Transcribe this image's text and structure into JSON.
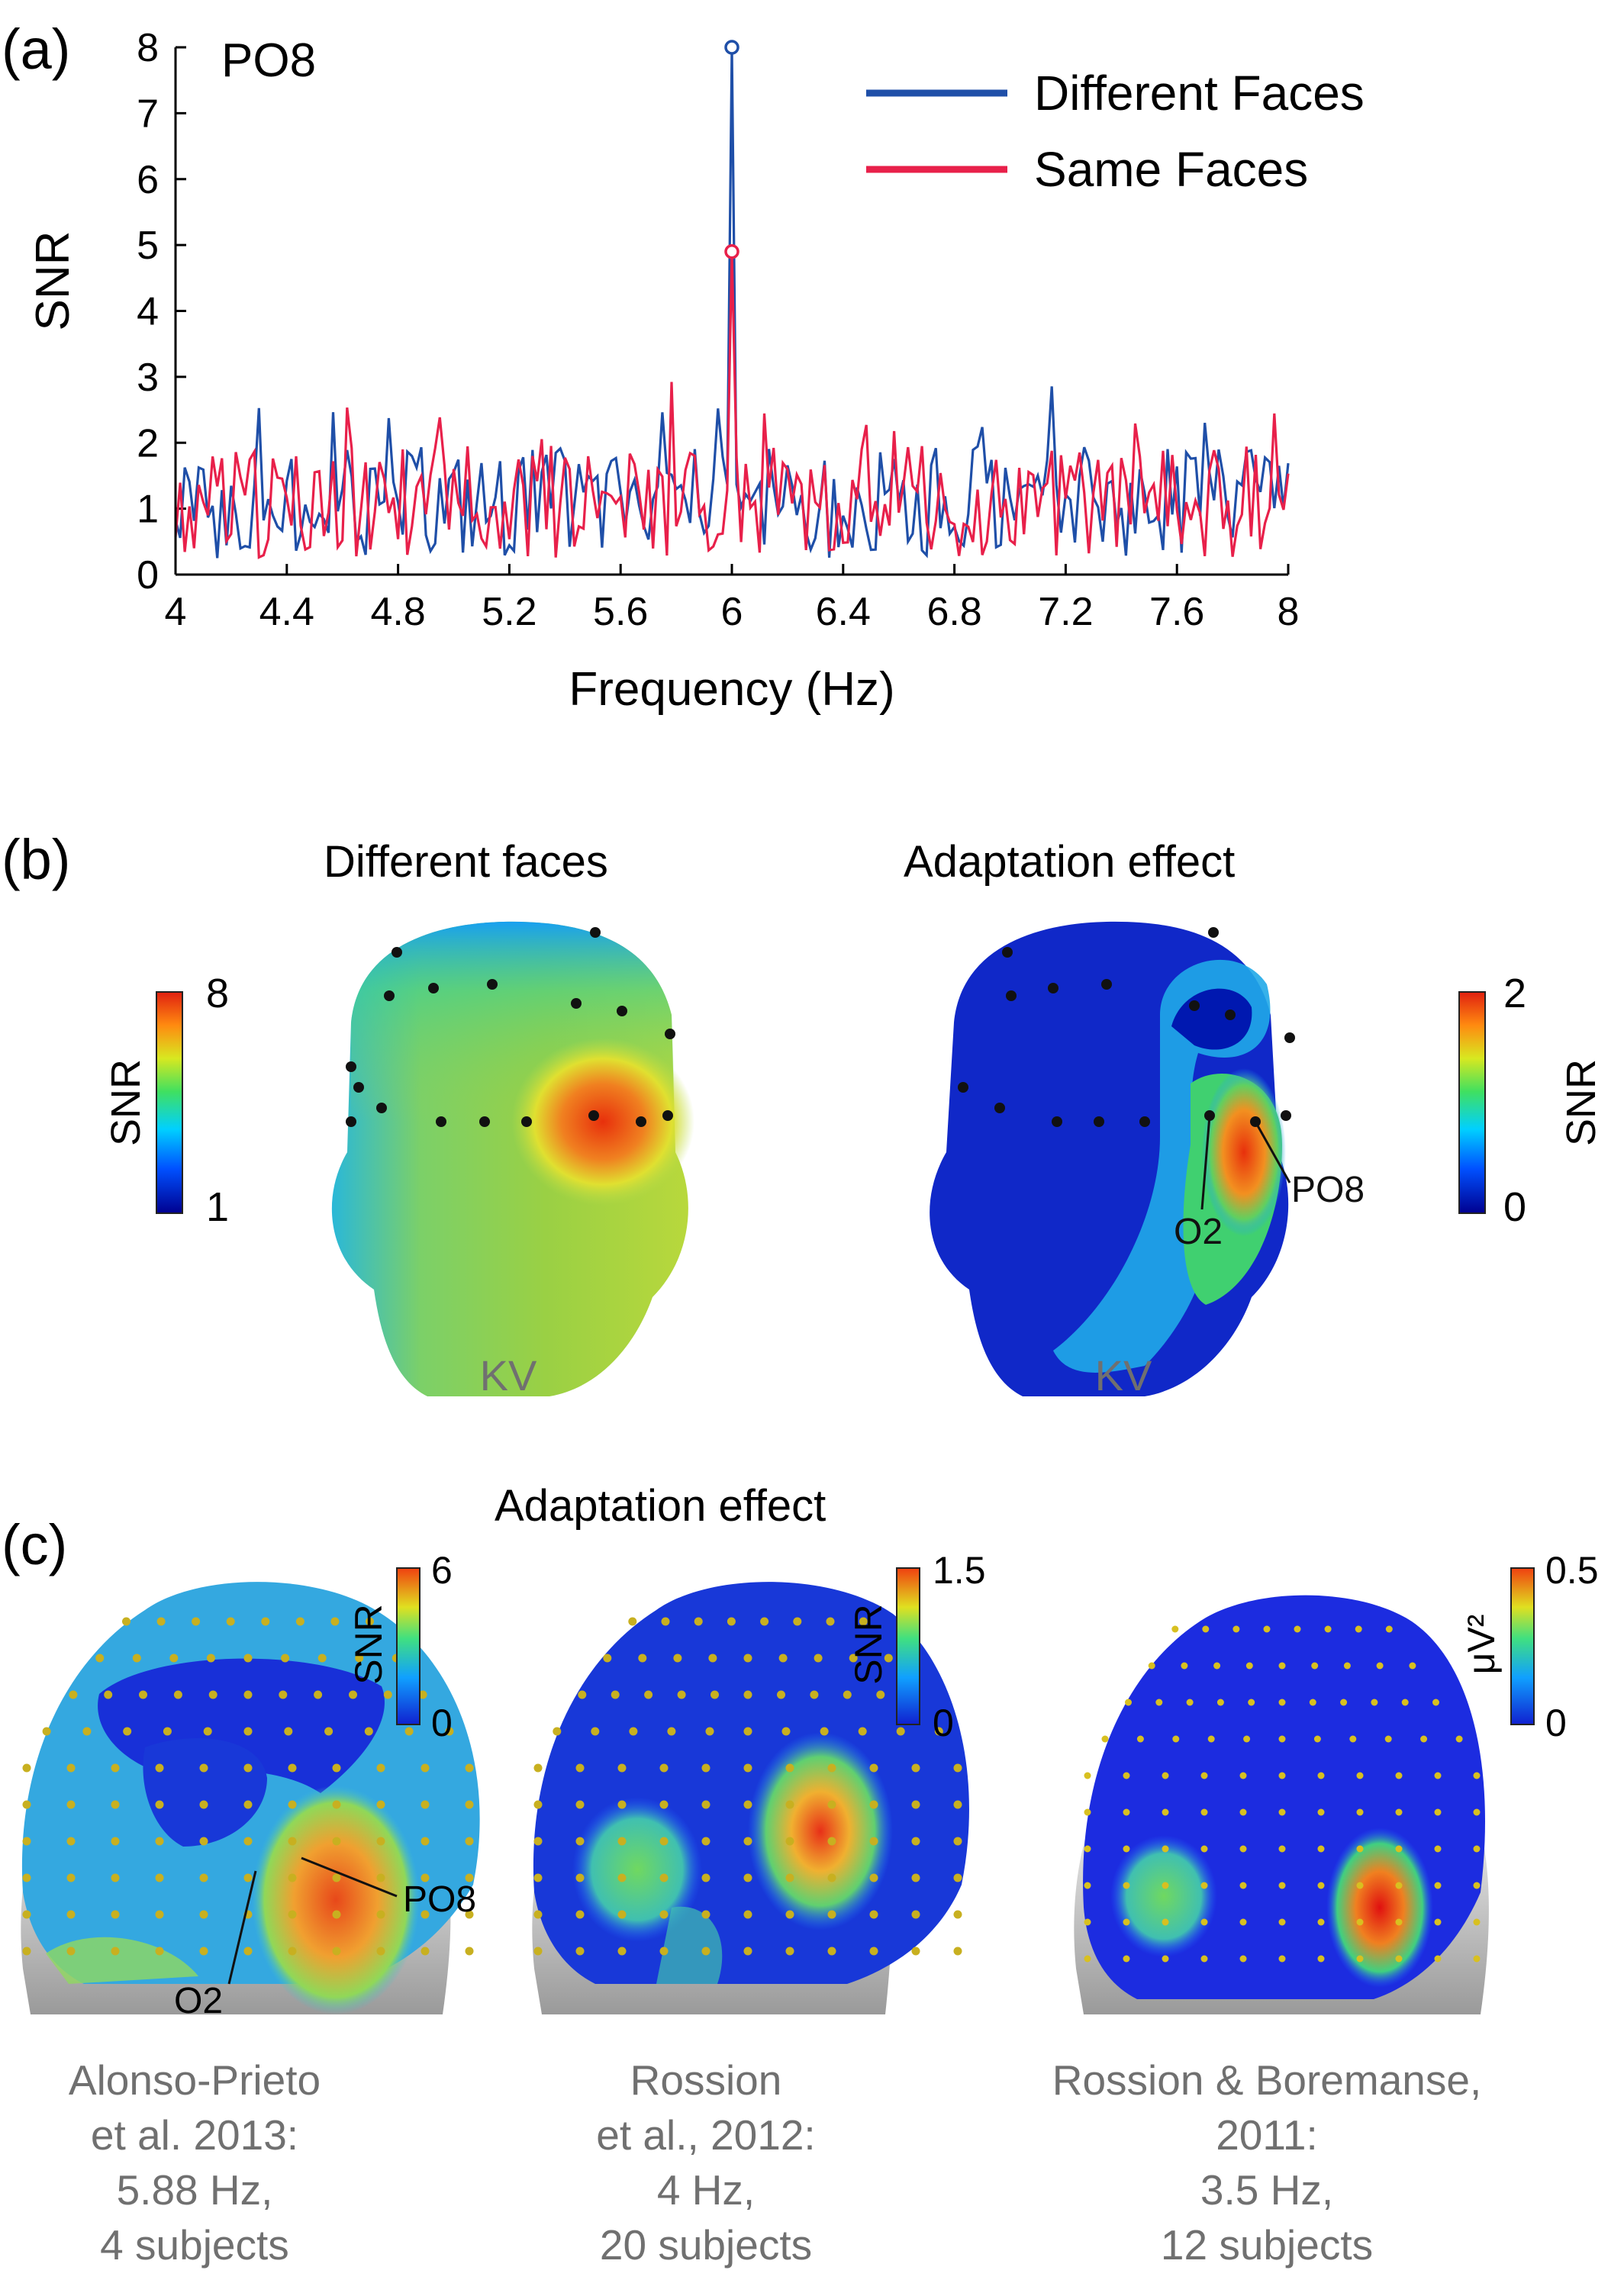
{
  "panels": {
    "a": {
      "letter": "(a)"
    },
    "b": {
      "letter": "(b)"
    },
    "c": {
      "letter": "(c)"
    }
  },
  "chart_data": {
    "type": "line",
    "title": "PO8",
    "xlabel": "Frequency (Hz)",
    "ylabel": "SNR",
    "xlim": [
      4,
      8
    ],
    "ylim": [
      0,
      8
    ],
    "xticks": [
      "4",
      "4.4",
      "4.8",
      "5.2",
      "5.6",
      "6",
      "6.4",
      "6.8",
      "7.2",
      "7.6",
      "8"
    ],
    "yticks": [
      "0",
      "1",
      "2",
      "3",
      "4",
      "5",
      "6",
      "7",
      "8"
    ],
    "legend_position": "top-right",
    "series": [
      {
        "name": "Different Faces",
        "color": "#1f4fa8",
        "peak": {
          "x": 6,
          "y": 8
        }
      },
      {
        "name": "Same Faces",
        "color": "#e8204a",
        "peak": {
          "x": 6,
          "y": 4.9
        }
      }
    ]
  },
  "panel_b": {
    "left_title": "Different faces",
    "right_title": "Adaptation effect",
    "left_caption": "KV",
    "right_caption": "KV",
    "left_colorbar": {
      "label": "SNR",
      "min": "1",
      "max": "8"
    },
    "right_colorbar": {
      "label": "SNR",
      "min": "0",
      "max": "2"
    },
    "electrodes": {
      "o2": "O2",
      "po8": "PO8"
    }
  },
  "panel_c": {
    "title": "Adaptation effect",
    "heads": [
      {
        "colorbar": {
          "label": "SNR",
          "min": "0",
          "max": "6"
        },
        "labels": {
          "o2": "O2",
          "po8": "PO8"
        },
        "caption": [
          "Alonso-Prieto",
          "et al. 2013:",
          "5.88 Hz,",
          "4 subjects"
        ]
      },
      {
        "colorbar": {
          "label": "SNR",
          "min": "0",
          "max": "1.5"
        },
        "caption": [
          "Rossion",
          "et al., 2012:",
          "4 Hz,",
          "20 subjects"
        ]
      },
      {
        "colorbar": {
          "label": "μV²",
          "min": "0",
          "max": "0.5"
        },
        "caption": [
          "Rossion & Boremanse,",
          "2011:",
          "3.5 Hz,",
          "12 subjects"
        ]
      }
    ]
  },
  "colors": {
    "blue": "#1f4fa8",
    "red": "#e8204a",
    "caption_gray": "#707070"
  }
}
